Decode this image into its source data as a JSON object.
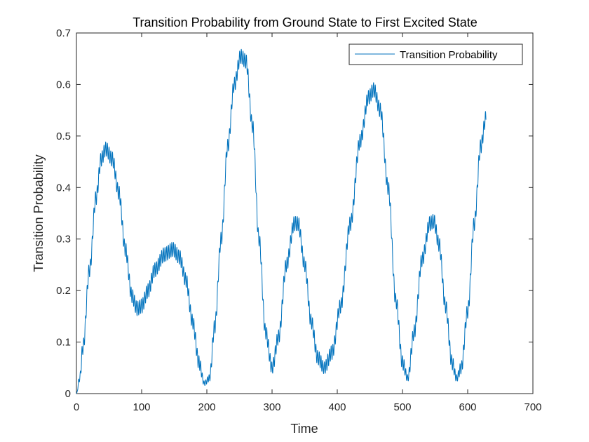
{
  "chart_data": {
    "type": "line",
    "title": "Transition Probability from Ground State to First Excited State",
    "xlabel": "Time",
    "ylabel": "Transition Probability",
    "xlim": [
      0,
      700
    ],
    "ylim": [
      0,
      0.7
    ],
    "xticks": [
      0,
      100,
      200,
      300,
      400,
      500,
      600,
      700
    ],
    "yticks": [
      0,
      0.1,
      0.2,
      0.3,
      0.4,
      0.5,
      0.6,
      0.7
    ],
    "grid": false,
    "legend_position": "top-right",
    "series": [
      {
        "name": "Transition Probability",
        "color": "#0072bd",
        "x_start": 0,
        "x_end": 628,
        "envelope": [
          [
            0,
            0.0
          ],
          [
            5,
            0.03
          ],
          [
            10,
            0.09
          ],
          [
            20,
            0.24
          ],
          [
            30,
            0.38
          ],
          [
            38,
            0.455
          ],
          [
            45,
            0.475
          ],
          [
            55,
            0.455
          ],
          [
            65,
            0.39
          ],
          [
            75,
            0.28
          ],
          [
            85,
            0.19
          ],
          [
            93,
            0.165
          ],
          [
            100,
            0.17
          ],
          [
            110,
            0.2
          ],
          [
            120,
            0.24
          ],
          [
            135,
            0.27
          ],
          [
            148,
            0.28
          ],
          [
            158,
            0.265
          ],
          [
            168,
            0.22
          ],
          [
            178,
            0.14
          ],
          [
            188,
            0.06
          ],
          [
            196,
            0.02
          ],
          [
            204,
            0.03
          ],
          [
            212,
            0.13
          ],
          [
            222,
            0.3
          ],
          [
            232,
            0.48
          ],
          [
            242,
            0.6
          ],
          [
            252,
            0.655
          ],
          [
            260,
            0.645
          ],
          [
            270,
            0.52
          ],
          [
            280,
            0.3
          ],
          [
            290,
            0.12
          ],
          [
            300,
            0.05
          ],
          [
            310,
            0.11
          ],
          [
            322,
            0.25
          ],
          [
            334,
            0.33
          ],
          [
            340,
            0.33
          ],
          [
            350,
            0.25
          ],
          [
            360,
            0.14
          ],
          [
            370,
            0.07
          ],
          [
            380,
            0.05
          ],
          [
            392,
            0.08
          ],
          [
            405,
            0.17
          ],
          [
            420,
            0.33
          ],
          [
            435,
            0.49
          ],
          [
            448,
            0.575
          ],
          [
            456,
            0.59
          ],
          [
            466,
            0.55
          ],
          [
            478,
            0.4
          ],
          [
            490,
            0.18
          ],
          [
            500,
            0.06
          ],
          [
            508,
            0.03
          ],
          [
            518,
            0.12
          ],
          [
            530,
            0.26
          ],
          [
            542,
            0.33
          ],
          [
            548,
            0.335
          ],
          [
            556,
            0.29
          ],
          [
            566,
            0.17
          ],
          [
            576,
            0.06
          ],
          [
            583,
            0.03
          ],
          [
            590,
            0.05
          ],
          [
            600,
            0.16
          ],
          [
            610,
            0.33
          ],
          [
            620,
            0.48
          ],
          [
            628,
            0.535
          ]
        ],
        "ripple_period": 2.6,
        "ripple_amplitude": 0.014
      }
    ]
  }
}
